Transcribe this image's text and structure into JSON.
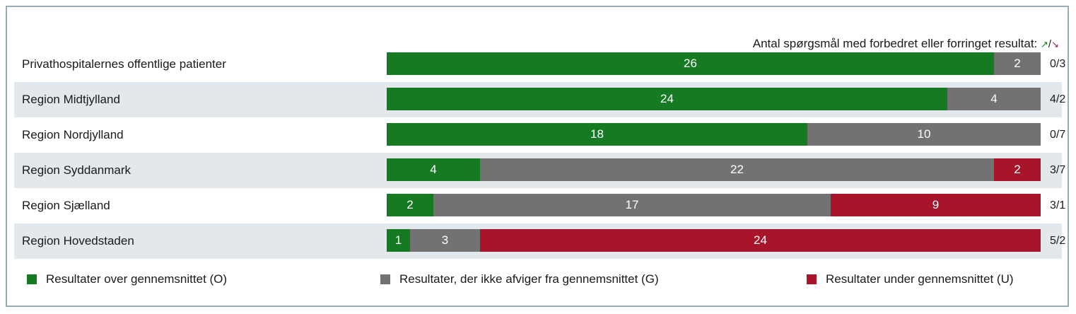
{
  "chart_data": {
    "type": "bar",
    "orientation": "horizontal",
    "stacked": true,
    "categories": [
      "Privathospitalernes offentlige patienter",
      "Region Midtjylland",
      "Region Nordjylland",
      "Region Syddanmark",
      "Region Sjælland",
      "Region Hovedstaden"
    ],
    "series": [
      {
        "name": "Resultater over gennemsnittet (O)",
        "color": "#157a22",
        "values": [
          26,
          24,
          18,
          4,
          2,
          1
        ]
      },
      {
        "name": "Resultater, der ikke afviger fra gennemsnittet (G)",
        "color": "#727272",
        "values": [
          2,
          4,
          10,
          22,
          17,
          3
        ]
      },
      {
        "name": "Resultater under gennemsnittet (U)",
        "color": "#a8152b",
        "values": [
          0,
          0,
          0,
          2,
          9,
          24
        ]
      }
    ],
    "right_labels": [
      "0/3",
      "4/2",
      "0/7",
      "3/7",
      "3/1",
      "5/2"
    ],
    "header_note": {
      "text": "Antal spørgsmål med forbedret eller forringet resultat:",
      "up_arrow": "↗",
      "separator": "/",
      "down_arrow": "↘"
    },
    "legend_placement": "bottom",
    "grid": false
  }
}
